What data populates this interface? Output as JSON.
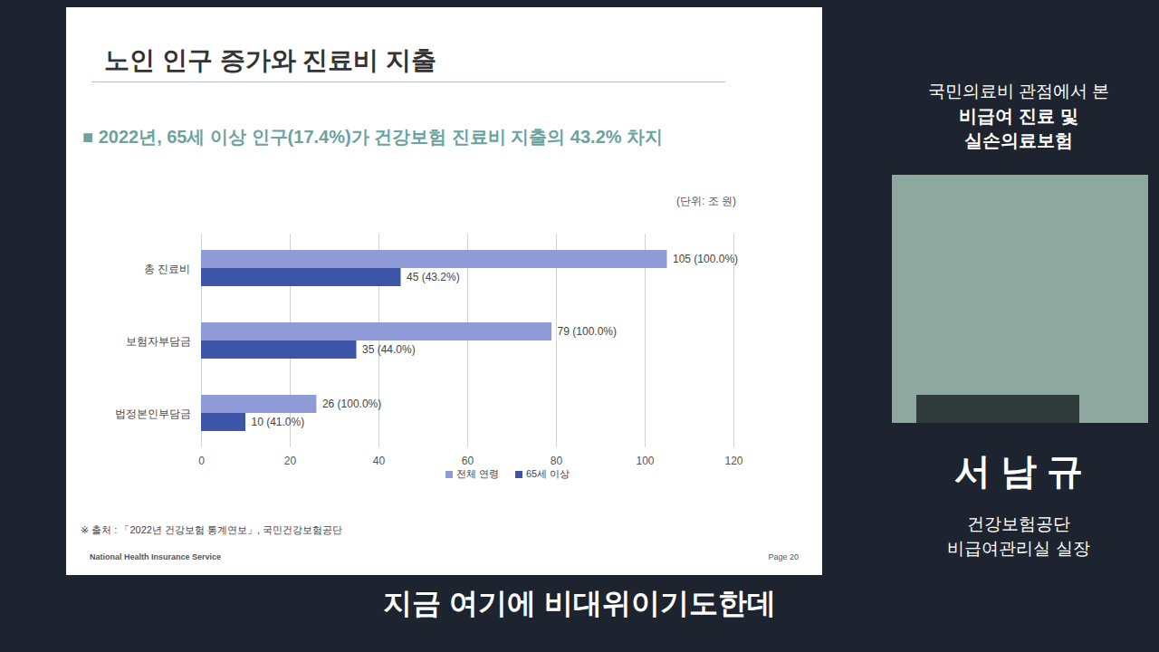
{
  "chart_data": {
    "type": "bar",
    "orientation": "horizontal",
    "title": "노인 인구 증가와 진료비 지출",
    "subtitle": "■ 2022년, 65세 이상 인구(17.4%)가 건강보험 진료비 지출의 43.2% 차지",
    "categories": [
      "총 진료비",
      "보험자부담금",
      "법정본인부담금"
    ],
    "series": [
      {
        "name": "전체 연령",
        "color": "#8e9bd6",
        "values": [
          105,
          79,
          26
        ],
        "value_labels": [
          "105 (100.0%)",
          "79 (100.0%)",
          "26 (100.0%)"
        ]
      },
      {
        "name": "65세 이상",
        "color": "#3d54a8",
        "values": [
          45,
          35,
          10
        ],
        "value_labels": [
          "45 (43.2%)",
          "35 (44.0%)",
          "10 (41.0%)"
        ]
      }
    ],
    "xlim": [
      0,
      120
    ],
    "xticks": [
      0,
      20,
      40,
      60,
      80,
      100,
      120
    ],
    "grid": true,
    "data_labels": true,
    "legend": "bottom",
    "annotations": [
      "(단위: 조 원)",
      "※ 출처 : 「2022년 건강보험 통계연보」, 국민건강보험공단",
      "National Health Insurance Service",
      "Page 20",
      "국민의료비 관점에서 본",
      "비급여 진료 및",
      "실손의료보험",
      "서 남 규",
      "건강보험공단",
      "비급여관리실 실장",
      "지금 여기에 비대위이기도한데"
    ]
  }
}
